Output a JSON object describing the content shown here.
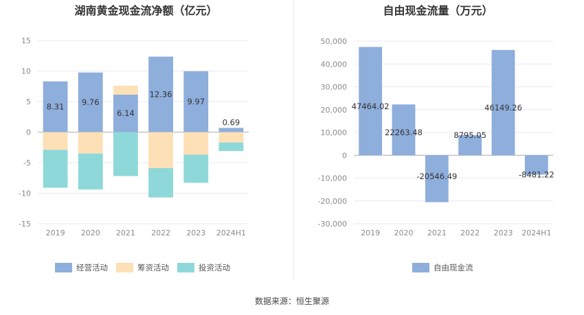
{
  "source": "数据来源：恒生聚源",
  "chart_data": [
    {
      "type": "bar",
      "stacked": true,
      "title": "湖南黄金现金流净额（亿元）",
      "categories": [
        "2019",
        "2020",
        "2021",
        "2022",
        "2023",
        "2024H1"
      ],
      "ylim": [
        -15,
        15
      ],
      "yticks": [
        15,
        10,
        5,
        0,
        -5,
        -10,
        -15
      ],
      "grid": true,
      "legend_position": "bottom",
      "series": [
        {
          "name": "经营活动",
          "color": "#8eaedc",
          "values": [
            8.31,
            9.76,
            6.14,
            12.36,
            9.97,
            0.69
          ],
          "labels": [
            "8.31",
            "9.76",
            "6.14",
            "12.36",
            "9.97",
            "0.69"
          ]
        },
        {
          "name": "筹资活动",
          "color": "#fde0b5",
          "values": [
            -2.9,
            -3.5,
            1.45,
            -5.9,
            -3.7,
            -1.7
          ]
        },
        {
          "name": "投资活动",
          "color": "#8fd8da",
          "values": [
            -6.2,
            -5.9,
            -7.2,
            -4.8,
            -4.6,
            -1.4
          ]
        }
      ]
    },
    {
      "type": "bar",
      "title": "自由现金流量（万元）",
      "categories": [
        "2019",
        "2020",
        "2021",
        "2022",
        "2023",
        "2024H1"
      ],
      "ylim": [
        -30000,
        50000
      ],
      "yticks": [
        50000,
        40000,
        30000,
        20000,
        10000,
        0,
        -10000,
        -20000,
        -30000
      ],
      "ytick_labels": [
        "50,000",
        "40,000",
        "30,000",
        "20,000",
        "10,000",
        "0",
        "-10,000",
        "-20,000",
        "-30,000"
      ],
      "grid": true,
      "legend_position": "bottom",
      "series": [
        {
          "name": "自由现金流",
          "color": "#8eaedc",
          "values": [
            47464.02,
            22263.48,
            -20546.49,
            8795.05,
            46149.26,
            -8481.22
          ],
          "labels": [
            "47464.02",
            "22263.48",
            "-20546.49",
            "8795.05",
            "46149.26",
            "-8481.22"
          ]
        }
      ]
    }
  ]
}
